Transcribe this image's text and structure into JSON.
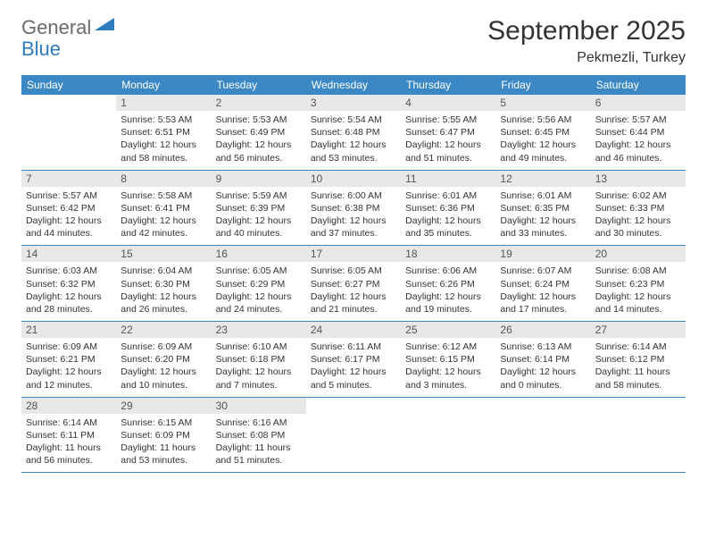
{
  "logo": {
    "text1": "General",
    "text2": "Blue"
  },
  "title": "September 2025",
  "location": "Pekmezli, Turkey",
  "colors": {
    "header_bg": "#3b88c4",
    "header_text": "#ffffff",
    "daynum_bg": "#e8e8e8",
    "daynum_text": "#555555",
    "body_text": "#333333",
    "row_border": "#3b88c4",
    "logo_gray": "#6b6b6b",
    "logo_blue": "#2f7bbf",
    "page_bg": "#ffffff"
  },
  "font": {
    "family": "Arial",
    "header_size": 12,
    "daynum_size": 12,
    "content_size": 10.5,
    "title_size": 30,
    "location_size": 16
  },
  "dayNames": [
    "Sunday",
    "Monday",
    "Tuesday",
    "Wednesday",
    "Thursday",
    "Friday",
    "Saturday"
  ],
  "weeks": [
    [
      {
        "n": "",
        "lines": []
      },
      {
        "n": "1",
        "lines": [
          "Sunrise: 5:53 AM",
          "Sunset: 6:51 PM",
          "Daylight: 12 hours",
          "and 58 minutes."
        ]
      },
      {
        "n": "2",
        "lines": [
          "Sunrise: 5:53 AM",
          "Sunset: 6:49 PM",
          "Daylight: 12 hours",
          "and 56 minutes."
        ]
      },
      {
        "n": "3",
        "lines": [
          "Sunrise: 5:54 AM",
          "Sunset: 6:48 PM",
          "Daylight: 12 hours",
          "and 53 minutes."
        ]
      },
      {
        "n": "4",
        "lines": [
          "Sunrise: 5:55 AM",
          "Sunset: 6:47 PM",
          "Daylight: 12 hours",
          "and 51 minutes."
        ]
      },
      {
        "n": "5",
        "lines": [
          "Sunrise: 5:56 AM",
          "Sunset: 6:45 PM",
          "Daylight: 12 hours",
          "and 49 minutes."
        ]
      },
      {
        "n": "6",
        "lines": [
          "Sunrise: 5:57 AM",
          "Sunset: 6:44 PM",
          "Daylight: 12 hours",
          "and 46 minutes."
        ]
      }
    ],
    [
      {
        "n": "7",
        "lines": [
          "Sunrise: 5:57 AM",
          "Sunset: 6:42 PM",
          "Daylight: 12 hours",
          "and 44 minutes."
        ]
      },
      {
        "n": "8",
        "lines": [
          "Sunrise: 5:58 AM",
          "Sunset: 6:41 PM",
          "Daylight: 12 hours",
          "and 42 minutes."
        ]
      },
      {
        "n": "9",
        "lines": [
          "Sunrise: 5:59 AM",
          "Sunset: 6:39 PM",
          "Daylight: 12 hours",
          "and 40 minutes."
        ]
      },
      {
        "n": "10",
        "lines": [
          "Sunrise: 6:00 AM",
          "Sunset: 6:38 PM",
          "Daylight: 12 hours",
          "and 37 minutes."
        ]
      },
      {
        "n": "11",
        "lines": [
          "Sunrise: 6:01 AM",
          "Sunset: 6:36 PM",
          "Daylight: 12 hours",
          "and 35 minutes."
        ]
      },
      {
        "n": "12",
        "lines": [
          "Sunrise: 6:01 AM",
          "Sunset: 6:35 PM",
          "Daylight: 12 hours",
          "and 33 minutes."
        ]
      },
      {
        "n": "13",
        "lines": [
          "Sunrise: 6:02 AM",
          "Sunset: 6:33 PM",
          "Daylight: 12 hours",
          "and 30 minutes."
        ]
      }
    ],
    [
      {
        "n": "14",
        "lines": [
          "Sunrise: 6:03 AM",
          "Sunset: 6:32 PM",
          "Daylight: 12 hours",
          "and 28 minutes."
        ]
      },
      {
        "n": "15",
        "lines": [
          "Sunrise: 6:04 AM",
          "Sunset: 6:30 PM",
          "Daylight: 12 hours",
          "and 26 minutes."
        ]
      },
      {
        "n": "16",
        "lines": [
          "Sunrise: 6:05 AM",
          "Sunset: 6:29 PM",
          "Daylight: 12 hours",
          "and 24 minutes."
        ]
      },
      {
        "n": "17",
        "lines": [
          "Sunrise: 6:05 AM",
          "Sunset: 6:27 PM",
          "Daylight: 12 hours",
          "and 21 minutes."
        ]
      },
      {
        "n": "18",
        "lines": [
          "Sunrise: 6:06 AM",
          "Sunset: 6:26 PM",
          "Daylight: 12 hours",
          "and 19 minutes."
        ]
      },
      {
        "n": "19",
        "lines": [
          "Sunrise: 6:07 AM",
          "Sunset: 6:24 PM",
          "Daylight: 12 hours",
          "and 17 minutes."
        ]
      },
      {
        "n": "20",
        "lines": [
          "Sunrise: 6:08 AM",
          "Sunset: 6:23 PM",
          "Daylight: 12 hours",
          "and 14 minutes."
        ]
      }
    ],
    [
      {
        "n": "21",
        "lines": [
          "Sunrise: 6:09 AM",
          "Sunset: 6:21 PM",
          "Daylight: 12 hours",
          "and 12 minutes."
        ]
      },
      {
        "n": "22",
        "lines": [
          "Sunrise: 6:09 AM",
          "Sunset: 6:20 PM",
          "Daylight: 12 hours",
          "and 10 minutes."
        ]
      },
      {
        "n": "23",
        "lines": [
          "Sunrise: 6:10 AM",
          "Sunset: 6:18 PM",
          "Daylight: 12 hours",
          "and 7 minutes."
        ]
      },
      {
        "n": "24",
        "lines": [
          "Sunrise: 6:11 AM",
          "Sunset: 6:17 PM",
          "Daylight: 12 hours",
          "and 5 minutes."
        ]
      },
      {
        "n": "25",
        "lines": [
          "Sunrise: 6:12 AM",
          "Sunset: 6:15 PM",
          "Daylight: 12 hours",
          "and 3 minutes."
        ]
      },
      {
        "n": "26",
        "lines": [
          "Sunrise: 6:13 AM",
          "Sunset: 6:14 PM",
          "Daylight: 12 hours",
          "and 0 minutes."
        ]
      },
      {
        "n": "27",
        "lines": [
          "Sunrise: 6:14 AM",
          "Sunset: 6:12 PM",
          "Daylight: 11 hours",
          "and 58 minutes."
        ]
      }
    ],
    [
      {
        "n": "28",
        "lines": [
          "Sunrise: 6:14 AM",
          "Sunset: 6:11 PM",
          "Daylight: 11 hours",
          "and 56 minutes."
        ]
      },
      {
        "n": "29",
        "lines": [
          "Sunrise: 6:15 AM",
          "Sunset: 6:09 PM",
          "Daylight: 11 hours",
          "and 53 minutes."
        ]
      },
      {
        "n": "30",
        "lines": [
          "Sunrise: 6:16 AM",
          "Sunset: 6:08 PM",
          "Daylight: 11 hours",
          "and 51 minutes."
        ]
      },
      {
        "n": "",
        "lines": []
      },
      {
        "n": "",
        "lines": []
      },
      {
        "n": "",
        "lines": []
      },
      {
        "n": "",
        "lines": []
      }
    ]
  ]
}
